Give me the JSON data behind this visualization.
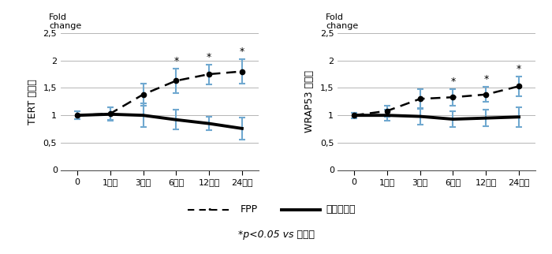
{
  "x_positions": [
    0,
    1,
    2,
    3,
    4,
    5
  ],
  "tert_fpp_y": [
    1.0,
    1.03,
    1.38,
    1.63,
    1.75,
    1.8
  ],
  "tert_fpp_err": [
    0.07,
    0.12,
    0.2,
    0.22,
    0.18,
    0.22
  ],
  "tert_anti_y": [
    1.0,
    1.02,
    1.0,
    0.92,
    0.85,
    0.76
  ],
  "tert_anti_err": [
    0.07,
    0.12,
    0.22,
    0.18,
    0.12,
    0.2
  ],
  "tert_sig": [
    false,
    false,
    false,
    true,
    true,
    true
  ],
  "wrap_fpp_y": [
    1.0,
    1.08,
    1.3,
    1.33,
    1.38,
    1.53
  ],
  "wrap_fpp_err": [
    0.05,
    0.1,
    0.18,
    0.15,
    0.14,
    0.18
  ],
  "wrap_anti_y": [
    1.0,
    1.0,
    0.98,
    0.93,
    0.95,
    0.97
  ],
  "wrap_anti_err": [
    0.05,
    0.1,
    0.15,
    0.15,
    0.15,
    0.18
  ],
  "wrap_sig": [
    false,
    false,
    false,
    true,
    true,
    true
  ],
  "ylim": [
    0,
    2.5
  ],
  "yticks": [
    0.5,
    1.0,
    1.5,
    2.0,
    2.5
  ],
  "ytick_labels": [
    "0,5",
    "1",
    "1,5",
    "2",
    "2,5"
  ],
  "err_color": "#6fa8d0",
  "background": "#ffffff"
}
